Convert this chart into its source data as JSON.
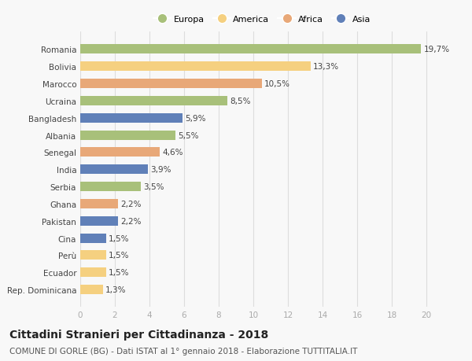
{
  "countries": [
    "Romania",
    "Bolivia",
    "Marocco",
    "Ucraina",
    "Bangladesh",
    "Albania",
    "Senegal",
    "India",
    "Serbia",
    "Ghana",
    "Pakistan",
    "Cina",
    "Perù",
    "Ecuador",
    "Rep. Dominicana"
  ],
  "values": [
    19.7,
    13.3,
    10.5,
    8.5,
    5.9,
    5.5,
    4.6,
    3.9,
    3.5,
    2.2,
    2.2,
    1.5,
    1.5,
    1.5,
    1.3
  ],
  "labels": [
    "19,7%",
    "13,3%",
    "10,5%",
    "8,5%",
    "5,9%",
    "5,5%",
    "4,6%",
    "3,9%",
    "3,5%",
    "2,2%",
    "2,2%",
    "1,5%",
    "1,5%",
    "1,5%",
    "1,3%"
  ],
  "categories": [
    "Europa",
    "America",
    "Africa",
    "Asia"
  ],
  "bar_colors": [
    "#a8c07a",
    "#f5d080",
    "#e8a878",
    "#a8c07a",
    "#6080b8",
    "#a8c07a",
    "#e8a878",
    "#6080b8",
    "#a8c07a",
    "#e8a878",
    "#6080b8",
    "#6080b8",
    "#f5d080",
    "#f5d080",
    "#f5d080"
  ],
  "legend_colors": [
    "#a8c07a",
    "#f5d080",
    "#e8a878",
    "#6080b8"
  ],
  "xlim": [
    0,
    21
  ],
  "xticks": [
    0,
    2,
    4,
    6,
    8,
    10,
    12,
    14,
    16,
    18,
    20
  ],
  "title": "Cittadini Stranieri per Cittadinanza - 2018",
  "subtitle": "COMUNE DI GORLE (BG) - Dati ISTAT al 1° gennaio 2018 - Elaborazione TUTTITALIA.IT",
  "bg_color": "#f8f8f8",
  "bar_height": 0.55,
  "label_fontsize": 7.5,
  "ytick_fontsize": 7.5,
  "xtick_fontsize": 7.5,
  "title_fontsize": 10,
  "subtitle_fontsize": 7.5
}
